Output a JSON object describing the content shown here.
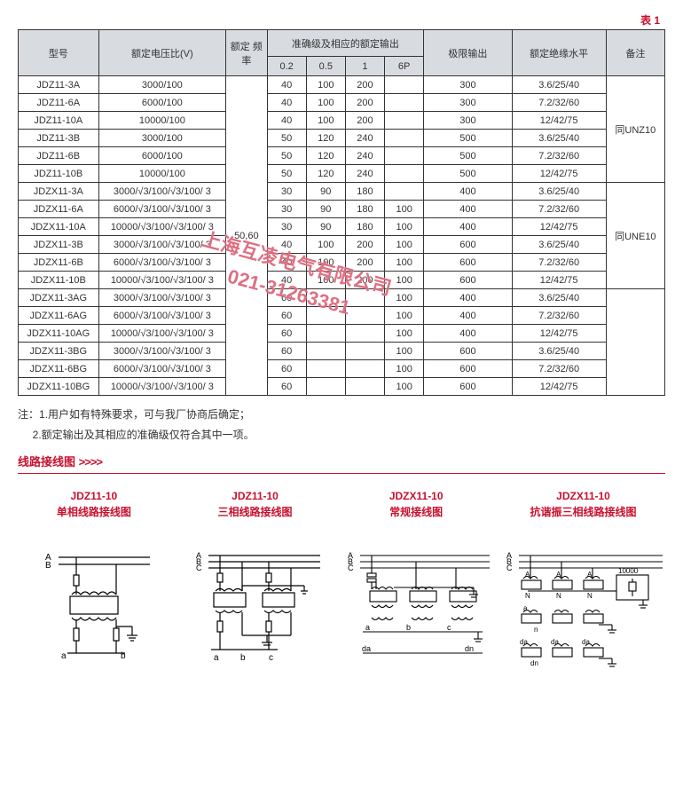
{
  "table_label": "表 1",
  "headers": {
    "model": "型号",
    "ratio": "额定电压比(V)",
    "freq": "额定 频率",
    "accuracy_group": "准确级及相应的额定输出",
    "acc": [
      "0.2",
      "0.5",
      "1",
      "6P"
    ],
    "limit": "极限输出",
    "insulation": "额定绝缘水平",
    "remark": "备注"
  },
  "freq_value": "50,60",
  "rows": [
    {
      "m": "JDZ11-3A",
      "r": "3000/100",
      "a": [
        "40",
        "100",
        "200",
        ""
      ],
      "l": "300",
      "i": "3.6/25/40"
    },
    {
      "m": "JDZ11-6A",
      "r": "6000/100",
      "a": [
        "40",
        "100",
        "200",
        ""
      ],
      "l": "300",
      "i": "7.2/32/60"
    },
    {
      "m": "JDZ11-10A",
      "r": "10000/100",
      "a": [
        "40",
        "100",
        "200",
        ""
      ],
      "l": "300",
      "i": "12/42/75"
    },
    {
      "m": "JDZ11-3B",
      "r": "3000/100",
      "a": [
        "50",
        "120",
        "240",
        ""
      ],
      "l": "500",
      "i": "3.6/25/40"
    },
    {
      "m": "JDZ11-6B",
      "r": "6000/100",
      "a": [
        "50",
        "120",
        "240",
        ""
      ],
      "l": "500",
      "i": "7.2/32/60"
    },
    {
      "m": "JDZ11-10B",
      "r": "10000/100",
      "a": [
        "50",
        "120",
        "240",
        ""
      ],
      "l": "500",
      "i": "12/42/75"
    },
    {
      "m": "JDZX11-3A",
      "r": "3000/√3/100/√3/100/ 3",
      "a": [
        "30",
        "90",
        "180",
        ""
      ],
      "l": "400",
      "i": "3.6/25/40"
    },
    {
      "m": "JDZX11-6A",
      "r": "6000/√3/100/√3/100/ 3",
      "a": [
        "30",
        "90",
        "180",
        "100"
      ],
      "l": "400",
      "i": "7.2/32/60"
    },
    {
      "m": "JDZX11-10A",
      "r": "10000/√3/100/√3/100/ 3",
      "a": [
        "30",
        "90",
        "180",
        "100"
      ],
      "l": "400",
      "i": "12/42/75"
    },
    {
      "m": "JDZX11-3B",
      "r": "3000/√3/100/√3/100/ 3",
      "a": [
        "40",
        "100",
        "200",
        "100"
      ],
      "l": "600",
      "i": "3.6/25/40"
    },
    {
      "m": "JDZX11-6B",
      "r": "6000/√3/100/√3/100/ 3",
      "a": [
        "40",
        "100",
        "200",
        "100"
      ],
      "l": "600",
      "i": "7.2/32/60"
    },
    {
      "m": "JDZX11-10B",
      "r": "10000/√3/100/√3/100/ 3",
      "a": [
        "40",
        "100",
        "200",
        "100"
      ],
      "l": "600",
      "i": "12/42/75"
    },
    {
      "m": "JDZX11-3AG",
      "r": "3000/√3/100/√3/100/ 3",
      "a": [
        "60",
        "",
        "",
        "100"
      ],
      "l": "400",
      "i": "3.6/25/40"
    },
    {
      "m": "JDZX11-6AG",
      "r": "6000/√3/100/√3/100/ 3",
      "a": [
        "60",
        "",
        "",
        "100"
      ],
      "l": "400",
      "i": "7.2/32/60"
    },
    {
      "m": "JDZX11-10AG",
      "r": "10000/√3/100/√3/100/ 3",
      "a": [
        "60",
        "",
        "",
        "100"
      ],
      "l": "400",
      "i": "12/42/75"
    },
    {
      "m": "JDZX11-3BG",
      "r": "3000/√3/100/√3/100/ 3",
      "a": [
        "60",
        "",
        "",
        "100"
      ],
      "l": "600",
      "i": "3.6/25/40"
    },
    {
      "m": "JDZX11-6BG",
      "r": "6000/√3/100/√3/100/ 3",
      "a": [
        "60",
        "",
        "",
        "100"
      ],
      "l": "600",
      "i": "7.2/32/60"
    },
    {
      "m": "JDZX11-10BG",
      "r": "10000/√3/100/√3/100/ 3",
      "a": [
        "60",
        "",
        "",
        "100"
      ],
      "l": "600",
      "i": "12/42/75"
    }
  ],
  "remark_groups": [
    "同UNZ10",
    "同UNE10"
  ],
  "notes_label_prefix": "注：",
  "notes": [
    "1.用户如有特殊要求，可与我厂协商后确定；",
    "2.额定输出及其相应的准确级仅符合其中一项。"
  ],
  "section_title": "线路接线图",
  "section_arrows": ">>>>",
  "diagrams": [
    {
      "code": "JDZ11-10",
      "title": "单相线路接线图"
    },
    {
      "code": "JDZ11-10",
      "title": "三相线路接线图"
    },
    {
      "code": "JDZX11-10",
      "title": "常规接线图"
    },
    {
      "code": "JDZX11-10",
      "title": "抗谐振三相线路接线图"
    }
  ],
  "watermark": {
    "line1": "上海互凌电气有限公司",
    "line2": "021-31263381"
  },
  "colors": {
    "accent": "#c8102e",
    "header_bg": "#d8dbe0",
    "line": "#000"
  }
}
